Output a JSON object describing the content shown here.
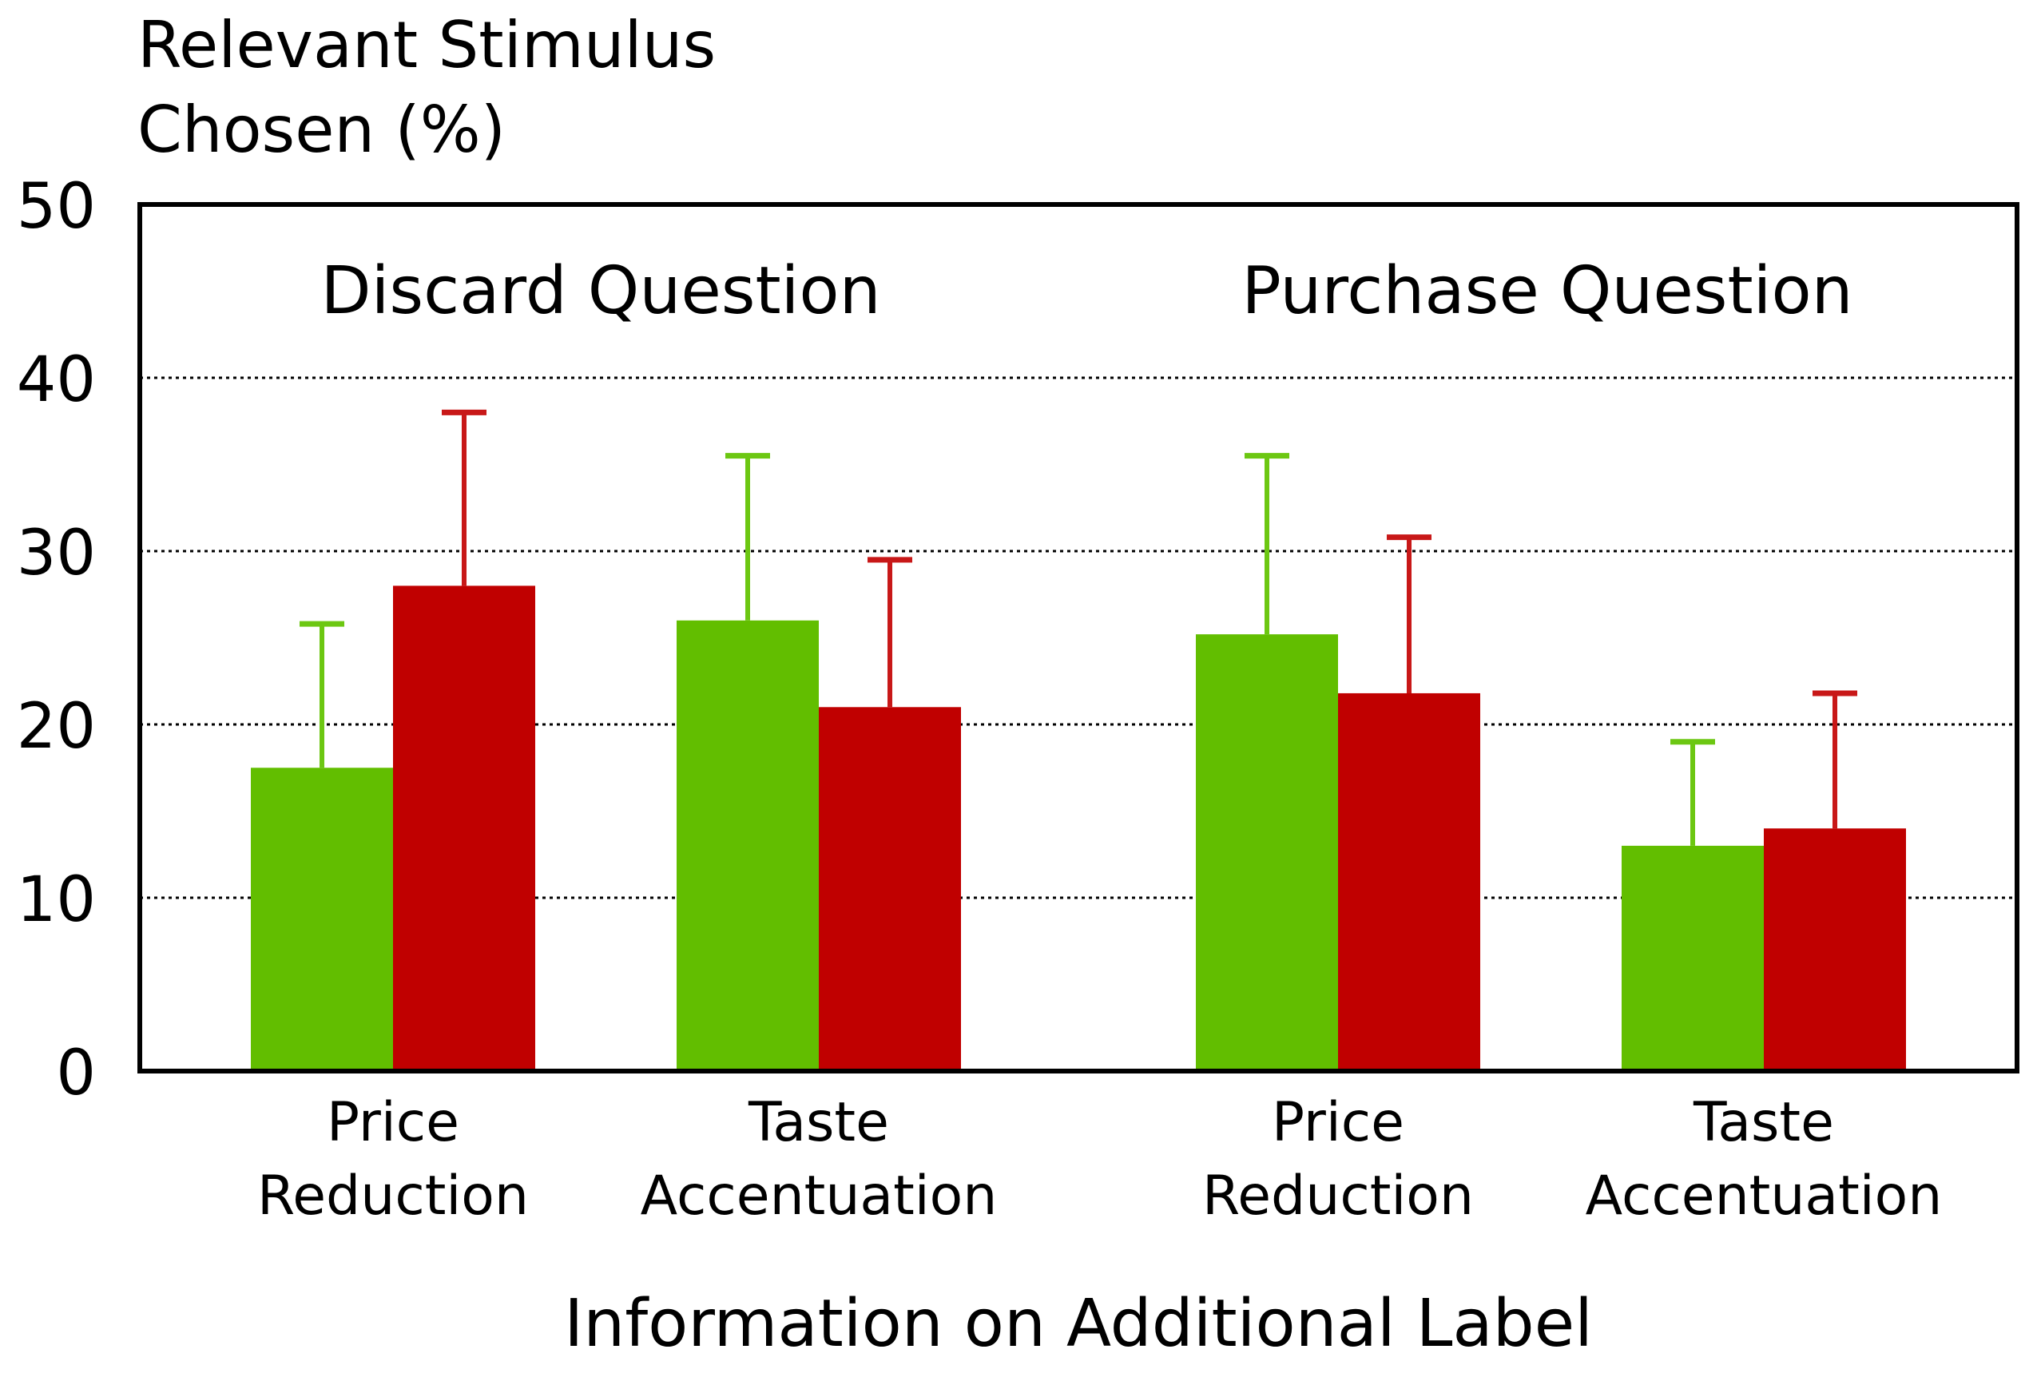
{
  "chart_data": {
    "type": "bar",
    "ylabel_lines": [
      "Relevant Stimulus",
      "Chosen (%)"
    ],
    "xlabel": "Information on Additional Label",
    "ylim": [
      0,
      50
    ],
    "yticks": [
      "0",
      "10",
      "20",
      "30",
      "40",
      "50"
    ],
    "grid": "dotted horizontal at 10, 20, 30, 40",
    "groups": [
      {
        "title": "Discard Question",
        "categories": [
          {
            "label_lines": [
              "Price",
              "Reduction"
            ],
            "values": [
              17.5,
              28.0
            ],
            "error_upper": [
              25.8,
              38.0
            ]
          },
          {
            "label_lines": [
              "Taste",
              "Accentuation"
            ],
            "values": [
              26.0,
              21.0
            ],
            "error_upper": [
              35.5,
              29.5
            ]
          }
        ]
      },
      {
        "title": "Purchase Question",
        "categories": [
          {
            "label_lines": [
              "Price",
              "Reduction"
            ],
            "values": [
              25.2,
              21.8
            ],
            "error_upper": [
              35.5,
              30.8
            ]
          },
          {
            "label_lines": [
              "Taste",
              "Accentuation"
            ],
            "values": [
              13.0,
              14.0
            ],
            "error_upper": [
              19.0,
              21.8
            ]
          }
        ]
      }
    ],
    "series_colors": [
      "#62be00",
      "#c00000"
    ]
  }
}
